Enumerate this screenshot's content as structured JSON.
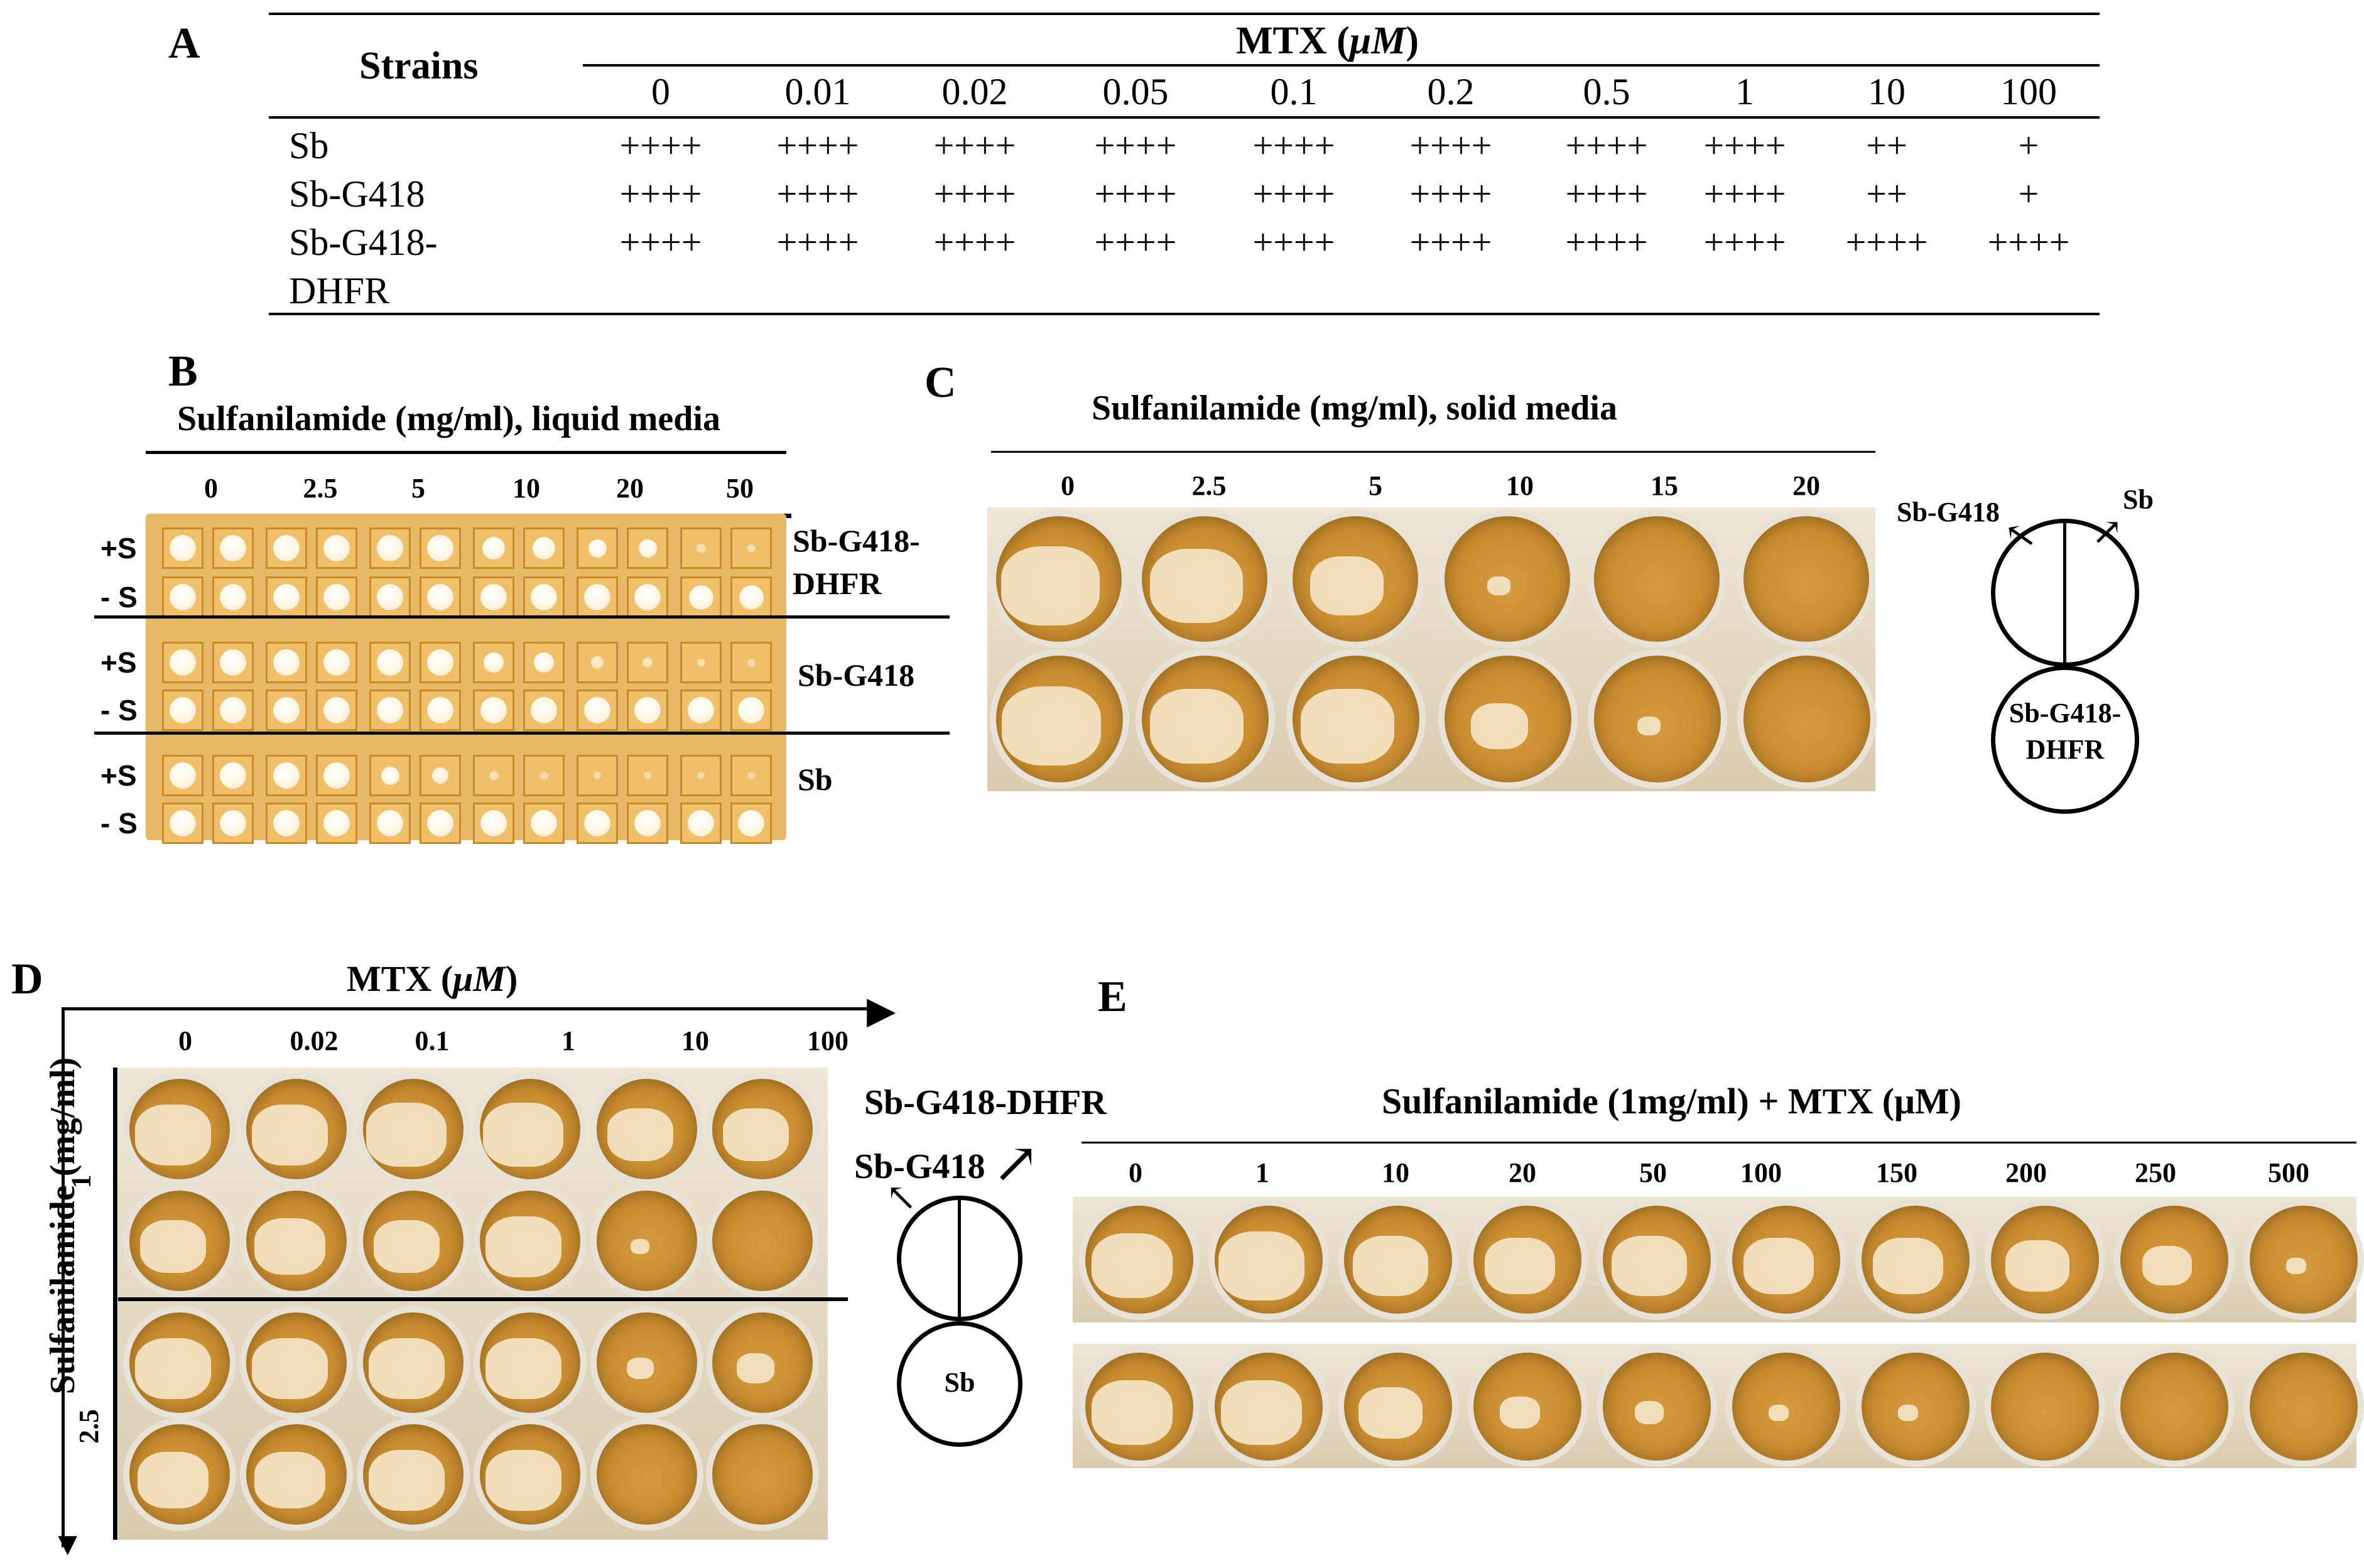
{
  "panels": {
    "a": "A",
    "b": "B",
    "c": "C",
    "d": "D",
    "e": "E"
  },
  "table_a": {
    "strains_header": "Strains",
    "mtx_header": "MTX (μM)",
    "mtx_label_text": "MTX (",
    "mtx_label_unit": "μM",
    "mtx_label_close": ")",
    "concentrations": [
      "0",
      "0.01",
      "0.02",
      "0.05",
      "0.1",
      "0.2",
      "0.5",
      "1",
      "10",
      "100"
    ],
    "rows": [
      {
        "strain": "Sb",
        "strain2": "",
        "values": [
          "++++",
          "++++",
          "++++",
          "++++",
          "++++",
          "++++",
          "++++",
          "++++",
          "++",
          "+"
        ]
      },
      {
        "strain": "Sb-G418",
        "strain2": "",
        "values": [
          "++++",
          "++++",
          "++++",
          "++++",
          "++++",
          "++++",
          "++++",
          "++++",
          "++",
          "+"
        ]
      },
      {
        "strain": "Sb-G418-",
        "strain2": "DHFR",
        "values": [
          "++++",
          "++++",
          "++++",
          "++++",
          "++++",
          "++++",
          "++++",
          "++++",
          "++++",
          "++++"
        ]
      }
    ]
  },
  "panel_b": {
    "title": "Sulfanilamide (mg/ml), liquid media",
    "concentrations": [
      "0",
      "2.5",
      "5",
      "10",
      "20",
      "50"
    ],
    "row_labels": [
      "+S",
      "- S",
      "+S",
      "- S",
      "+S",
      "- S"
    ],
    "groups": [
      "Sb-G418-",
      "DHFR",
      "Sb-G418",
      "Sb"
    ],
    "growth": [
      [
        1,
        1,
        1,
        1,
        1,
        1,
        0.8,
        0.8,
        0.6,
        0.6,
        0.15,
        0.1
      ],
      [
        1,
        1,
        1,
        1,
        1,
        1,
        1,
        1,
        1,
        1,
        0.9,
        0.9
      ],
      [
        1,
        1,
        1,
        1,
        1,
        1,
        0.7,
        0.7,
        0.3,
        0.2,
        0.1,
        0.1
      ],
      [
        1,
        1,
        1,
        1,
        1,
        1,
        1,
        1,
        1,
        1,
        1,
        1
      ],
      [
        1,
        1,
        1,
        1,
        0.6,
        0.5,
        0.15,
        0.1,
        0.05,
        0.05,
        0.05,
        0.05
      ],
      [
        1,
        1,
        1,
        1,
        1,
        1,
        1,
        1,
        1,
        1,
        1,
        1
      ]
    ]
  },
  "panel_c": {
    "title": "Sulfanilamide (mg/ml), solid media",
    "concentrations": [
      "0",
      "2.5",
      "5",
      "10",
      "15",
      "20"
    ],
    "legend": {
      "left": "Sb-G418",
      "right": "Sb",
      "bottom1": "Sb-G418-",
      "bottom2": "DHFR"
    },
    "growth_top": [
      0.9,
      0.8,
      0.5,
      0.05,
      0,
      0
    ],
    "growth_bottom": [
      0.9,
      0.8,
      0.8,
      0.3,
      0.05,
      0
    ]
  },
  "panel_d": {
    "x_title": "MTX (μM)",
    "x_title_text": "MTX (",
    "x_title_unit": "μM",
    "x_title_close": ")",
    "y_title": "Sulfanilamide (mg/ml)",
    "concentrations": [
      "0",
      "0.02",
      "0.1",
      "1",
      "10",
      "100"
    ],
    "sulfa_levels": [
      "1",
      "2.5"
    ],
    "legend": {
      "top": "Sb-G418-DHFR",
      "left": "Sb-G418",
      "bottom": "Sb"
    },
    "growth": [
      [
        0.8,
        0.8,
        0.9,
        0.9,
        0.6,
        0.6
      ],
      [
        0.6,
        0.7,
        0.6,
        0.8,
        0.05,
        0
      ],
      [
        0.8,
        0.8,
        0.8,
        0.8,
        0.1,
        0.2
      ],
      [
        0.7,
        0.7,
        0.8,
        0.8,
        0,
        0
      ]
    ]
  },
  "panel_e": {
    "title": "Sulfanilamide (1mg/ml) + MTX (μM)",
    "title_text": "Sulfanilamide (1mg/ml) + MTX (",
    "title_unit": "μM",
    "title_close": ")",
    "concentrations": [
      "0",
      "1",
      "10",
      "20",
      "50",
      "100",
      "150",
      "200",
      "250",
      "500"
    ],
    "growth_top": [
      0.8,
      0.9,
      0.7,
      0.6,
      0.7,
      0.6,
      0.6,
      0.5,
      0.3,
      0.05
    ],
    "growth_bottom": [
      0.8,
      0.8,
      0.5,
      0.2,
      0.1,
      0.05,
      0.05,
      0,
      0,
      0
    ]
  }
}
